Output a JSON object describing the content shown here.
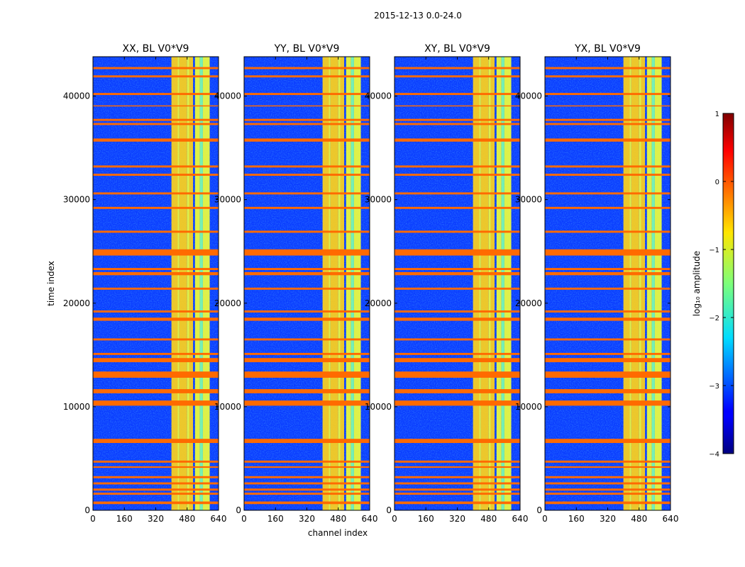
{
  "figure": {
    "suptitle": "2015-12-13 0.0-24.0"
  },
  "chart_data": {
    "type": "heatmap",
    "xlabel": "channel index",
    "ylabel": "time index",
    "xlim": [
      0,
      640
    ],
    "ylim": [
      0,
      43800
    ],
    "xticks": [
      0,
      160,
      320,
      480,
      640
    ],
    "yticks": [
      0,
      10000,
      20000,
      30000,
      40000
    ],
    "panels": [
      {
        "title": "XX, BL V0*V9"
      },
      {
        "title": "YY, BL V0*V9"
      },
      {
        "title": "XY, BL V0*V9"
      },
      {
        "title": "YX, BL V0*V9"
      }
    ],
    "colorbar": {
      "label": "log₁₀ amplitude",
      "range": [
        -4,
        1
      ],
      "ticks": [
        "1",
        "0",
        "−1",
        "−2",
        "−3",
        "−4"
      ],
      "colormap": "jet"
    },
    "flagged_time_bands": [
      [
        600,
        850
      ],
      [
        1500,
        1700
      ],
      [
        1900,
        2100
      ],
      [
        2500,
        2700
      ],
      [
        3100,
        3300
      ],
      [
        4100,
        4250
      ],
      [
        4600,
        4800
      ],
      [
        6500,
        6900
      ],
      [
        10100,
        10600
      ],
      [
        11300,
        11700
      ],
      [
        12800,
        13400
      ],
      [
        14300,
        14700
      ],
      [
        15000,
        15200
      ],
      [
        16400,
        16600
      ],
      [
        18300,
        18600
      ],
      [
        19100,
        19300
      ],
      [
        21300,
        21500
      ],
      [
        22700,
        23000
      ],
      [
        23200,
        23400
      ],
      [
        24600,
        25200
      ],
      [
        26800,
        27000
      ],
      [
        29100,
        29300
      ],
      [
        30500,
        30700
      ],
      [
        32300,
        32500
      ],
      [
        33100,
        33300
      ],
      [
        35600,
        35900
      ],
      [
        37200,
        37400
      ],
      [
        37600,
        37800
      ],
      [
        39000,
        39100
      ],
      [
        40100,
        40300
      ],
      [
        41800,
        42000
      ],
      [
        42600,
        42800
      ]
    ],
    "rfi_channel_bands": [
      [
        400,
        432,
        "high"
      ],
      [
        432,
        440,
        "mid"
      ],
      [
        440,
        480,
        "high"
      ],
      [
        480,
        490,
        "mid"
      ],
      [
        490,
        510,
        "high"
      ],
      [
        520,
        545,
        "mid"
      ],
      [
        545,
        560,
        "low"
      ],
      [
        560,
        595,
        "mid"
      ]
    ]
  }
}
